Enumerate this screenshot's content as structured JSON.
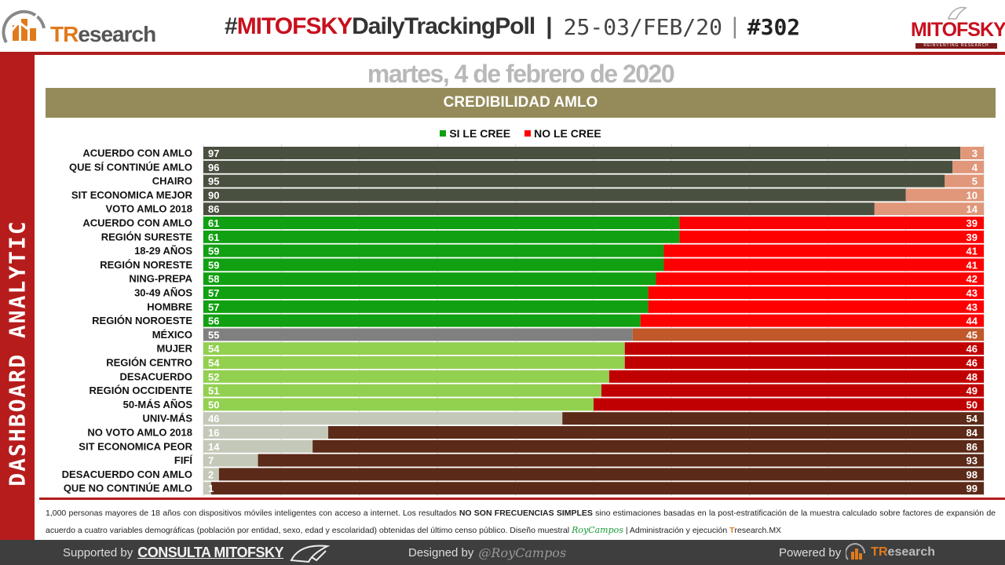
{
  "header": {
    "logo_left": {
      "brand_first": "TR",
      "brand_rest": "esearch"
    },
    "hashtag": "#",
    "tag_red": "MITOFSKY",
    "tag_dark": "DailyTrackingPoll",
    "sep": "|",
    "date_range": "25-03/FEB/20",
    "issue": "#302",
    "logo_right": {
      "brand": "MITOFSKY",
      "sub": "REINVENTING RESEARCH"
    }
  },
  "sidebar": {
    "label": "DASHBOARD ANALYTIC"
  },
  "date_title": "martes, 4 de febrero de 2020",
  "colors": {
    "accent_red": "#b71c1c",
    "band": "#958b5a"
  },
  "chart_data": {
    "type": "bar",
    "orientation": "horizontal",
    "stacked": true,
    "title": "CREDIBILIDAD AMLO",
    "legend_position": "top-center",
    "xlim": [
      0,
      100
    ],
    "grid": true,
    "categories": [
      "ACUERDO CON AMLO",
      "QUE SÍ CONTINÚE AMLO",
      "CHAIRO",
      "SIT ECONOMICA MEJOR",
      "VOTO AMLO 2018",
      "ACUERDO CON AMLO",
      "REGIÓN SURESTE",
      "18-29 AÑOS",
      "REGIÓN NORESTE",
      "NING-PREPA",
      "30-49 AÑOS",
      "HOMBRE",
      "REGIÓN NOROESTE",
      "MÉXICO",
      "MUJER",
      "REGIÓN CENTRO",
      "DESACUERDO",
      "REGIÓN OCCIDENTE",
      "50-MÁS AÑOS",
      "UNIV-MÁS",
      "NO VOTO AMLO 2018",
      "SIT ECONOMICA PEOR",
      "FIFÍ",
      "DESACUERDO CON AMLO",
      "QUE NO CONTINÚE AMLO"
    ],
    "series": [
      {
        "name": "SI LE CREE",
        "color": "#11a011",
        "values": [
          97,
          96,
          95,
          90,
          86,
          61,
          61,
          59,
          59,
          58,
          57,
          57,
          56,
          55,
          54,
          54,
          52,
          51,
          50,
          46,
          16,
          14,
          7,
          2,
          1
        ]
      },
      {
        "name": "NO LE CREE",
        "color": "#ff0000",
        "values": [
          3,
          4,
          5,
          10,
          14,
          39,
          39,
          41,
          41,
          42,
          43,
          43,
          44,
          45,
          46,
          46,
          48,
          49,
          50,
          54,
          84,
          86,
          93,
          98,
          99
        ]
      }
    ],
    "row_colors": [
      [
        "#4a5040",
        "#e0977a"
      ],
      [
        "#4a5040",
        "#e0977a"
      ],
      [
        "#4a5040",
        "#e0977a"
      ],
      [
        "#4a5040",
        "#e0977a"
      ],
      [
        "#4a5040",
        "#e0977a"
      ],
      [
        "#11a011",
        "#ff0000"
      ],
      [
        "#11a011",
        "#ff0000"
      ],
      [
        "#11a011",
        "#ff0000"
      ],
      [
        "#11a011",
        "#ff0000"
      ],
      [
        "#11a011",
        "#ff0000"
      ],
      [
        "#11a011",
        "#ff0000"
      ],
      [
        "#11a011",
        "#ff0000"
      ],
      [
        "#11a011",
        "#ff0000"
      ],
      [
        "#808080",
        "#c0582a"
      ],
      [
        "#92d050",
        "#c00000"
      ],
      [
        "#92d050",
        "#c00000"
      ],
      [
        "#92d050",
        "#c00000"
      ],
      [
        "#92d050",
        "#c00000"
      ],
      [
        "#92d050",
        "#c00000"
      ],
      [
        "#c4c8b8",
        "#5c2a18"
      ],
      [
        "#c4c8b8",
        "#5c2a18"
      ],
      [
        "#c4c8b8",
        "#5c2a18"
      ],
      [
        "#c4c8b8",
        "#5c2a18"
      ],
      [
        "#c4c8b8",
        "#5c2a18"
      ],
      [
        "#c4c8b8",
        "#5c2a18"
      ]
    ]
  },
  "footnote": {
    "part1": "1,000 personas mayores de 18 años con dispositivos móviles inteligentes con acceso a internet. Los resultados ",
    "bold": "NO SON FRECUENCIAS SIMPLES",
    "part2": " sino estimaciones basadas en la post-estratificación de la muestra calculado sobre factores de expansión de acuerdo a cuatro variables demográficas (población por entidad, sexo, edad y escolaridad) obtenidas del último censo público. Diseño muestral ",
    "signature": "RoyCampos",
    "part3": " | Administración y ejecución ",
    "tr_first": "T",
    "tr_rest": "research.MX"
  },
  "footer": {
    "supported_by": "Supported by",
    "consulta": "CONSULTA MITOFSKY",
    "designed_by": "Designed by",
    "designer": "@RoyCampos",
    "powered_by": "Powered by",
    "tr_first": "TR",
    "tr_rest": "esearch"
  }
}
